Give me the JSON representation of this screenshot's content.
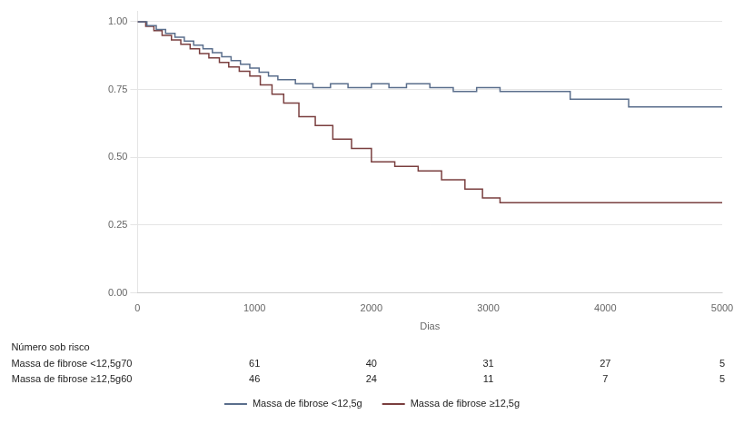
{
  "chart_data": {
    "type": "line",
    "line_style": "step",
    "xlabel": "Dias",
    "xlim": [
      0,
      5000
    ],
    "ylim": [
      0.0,
      1.04
    ],
    "xticks": [
      0,
      1000,
      2000,
      3000,
      4000,
      5000
    ],
    "yticks": [
      {
        "value": 0.0,
        "label": "0.00"
      },
      0.25,
      {
        "value": 0.5,
        "label": "0.50"
      },
      0.75,
      {
        "value": 1.0,
        "label": "1.00"
      }
    ],
    "grid": "y",
    "legend": "bottom",
    "series": [
      {
        "name": "Massa de fibrose <12,5g",
        "color": "#5a6e8c",
        "x": [
          0,
          80,
          160,
          240,
          320,
          400,
          480,
          560,
          640,
          720,
          800,
          880,
          960,
          1040,
          1120,
          1200,
          1350,
          1500,
          1650,
          1800,
          2000,
          2150,
          2300,
          2500,
          2700,
          2900,
          3100,
          3700,
          4200,
          4600,
          5000
        ],
        "values": [
          1.0,
          0.986,
          0.971,
          0.957,
          0.943,
          0.929,
          0.914,
          0.9,
          0.886,
          0.871,
          0.857,
          0.843,
          0.829,
          0.814,
          0.8,
          0.786,
          0.771,
          0.757,
          0.771,
          0.757,
          0.771,
          0.757,
          0.771,
          0.757,
          0.743,
          0.757,
          0.743,
          0.714,
          0.686,
          0.686,
          0.686
        ]
      },
      {
        "name": "Massa de fibrose ≥12,5g",
        "color": "#7a3f3f",
        "x": [
          0,
          70,
          140,
          210,
          290,
          370,
          450,
          530,
          610,
          700,
          780,
          870,
          960,
          1050,
          1150,
          1250,
          1380,
          1520,
          1670,
          1830,
          2000,
          2200,
          2400,
          2600,
          2800,
          2950,
          3100,
          5000
        ],
        "values": [
          1.0,
          0.983,
          0.967,
          0.95,
          0.933,
          0.917,
          0.9,
          0.883,
          0.867,
          0.85,
          0.833,
          0.817,
          0.8,
          0.767,
          0.733,
          0.7,
          0.65,
          0.617,
          0.567,
          0.533,
          0.483,
          0.467,
          0.45,
          0.417,
          0.383,
          0.35,
          0.333,
          0.333
        ]
      }
    ],
    "risk_table": {
      "title": "Número sob risco",
      "x": [
        1000,
        2000,
        3000,
        4000,
        5000
      ],
      "rows": [
        {
          "label": "Massa de fibrose <12,5g70",
          "values": [
            61,
            40,
            31,
            27,
            5
          ]
        },
        {
          "label": "Massa de fibrose ≥12,5g60",
          "values": [
            46,
            24,
            11,
            7,
            5
          ]
        }
      ]
    }
  }
}
